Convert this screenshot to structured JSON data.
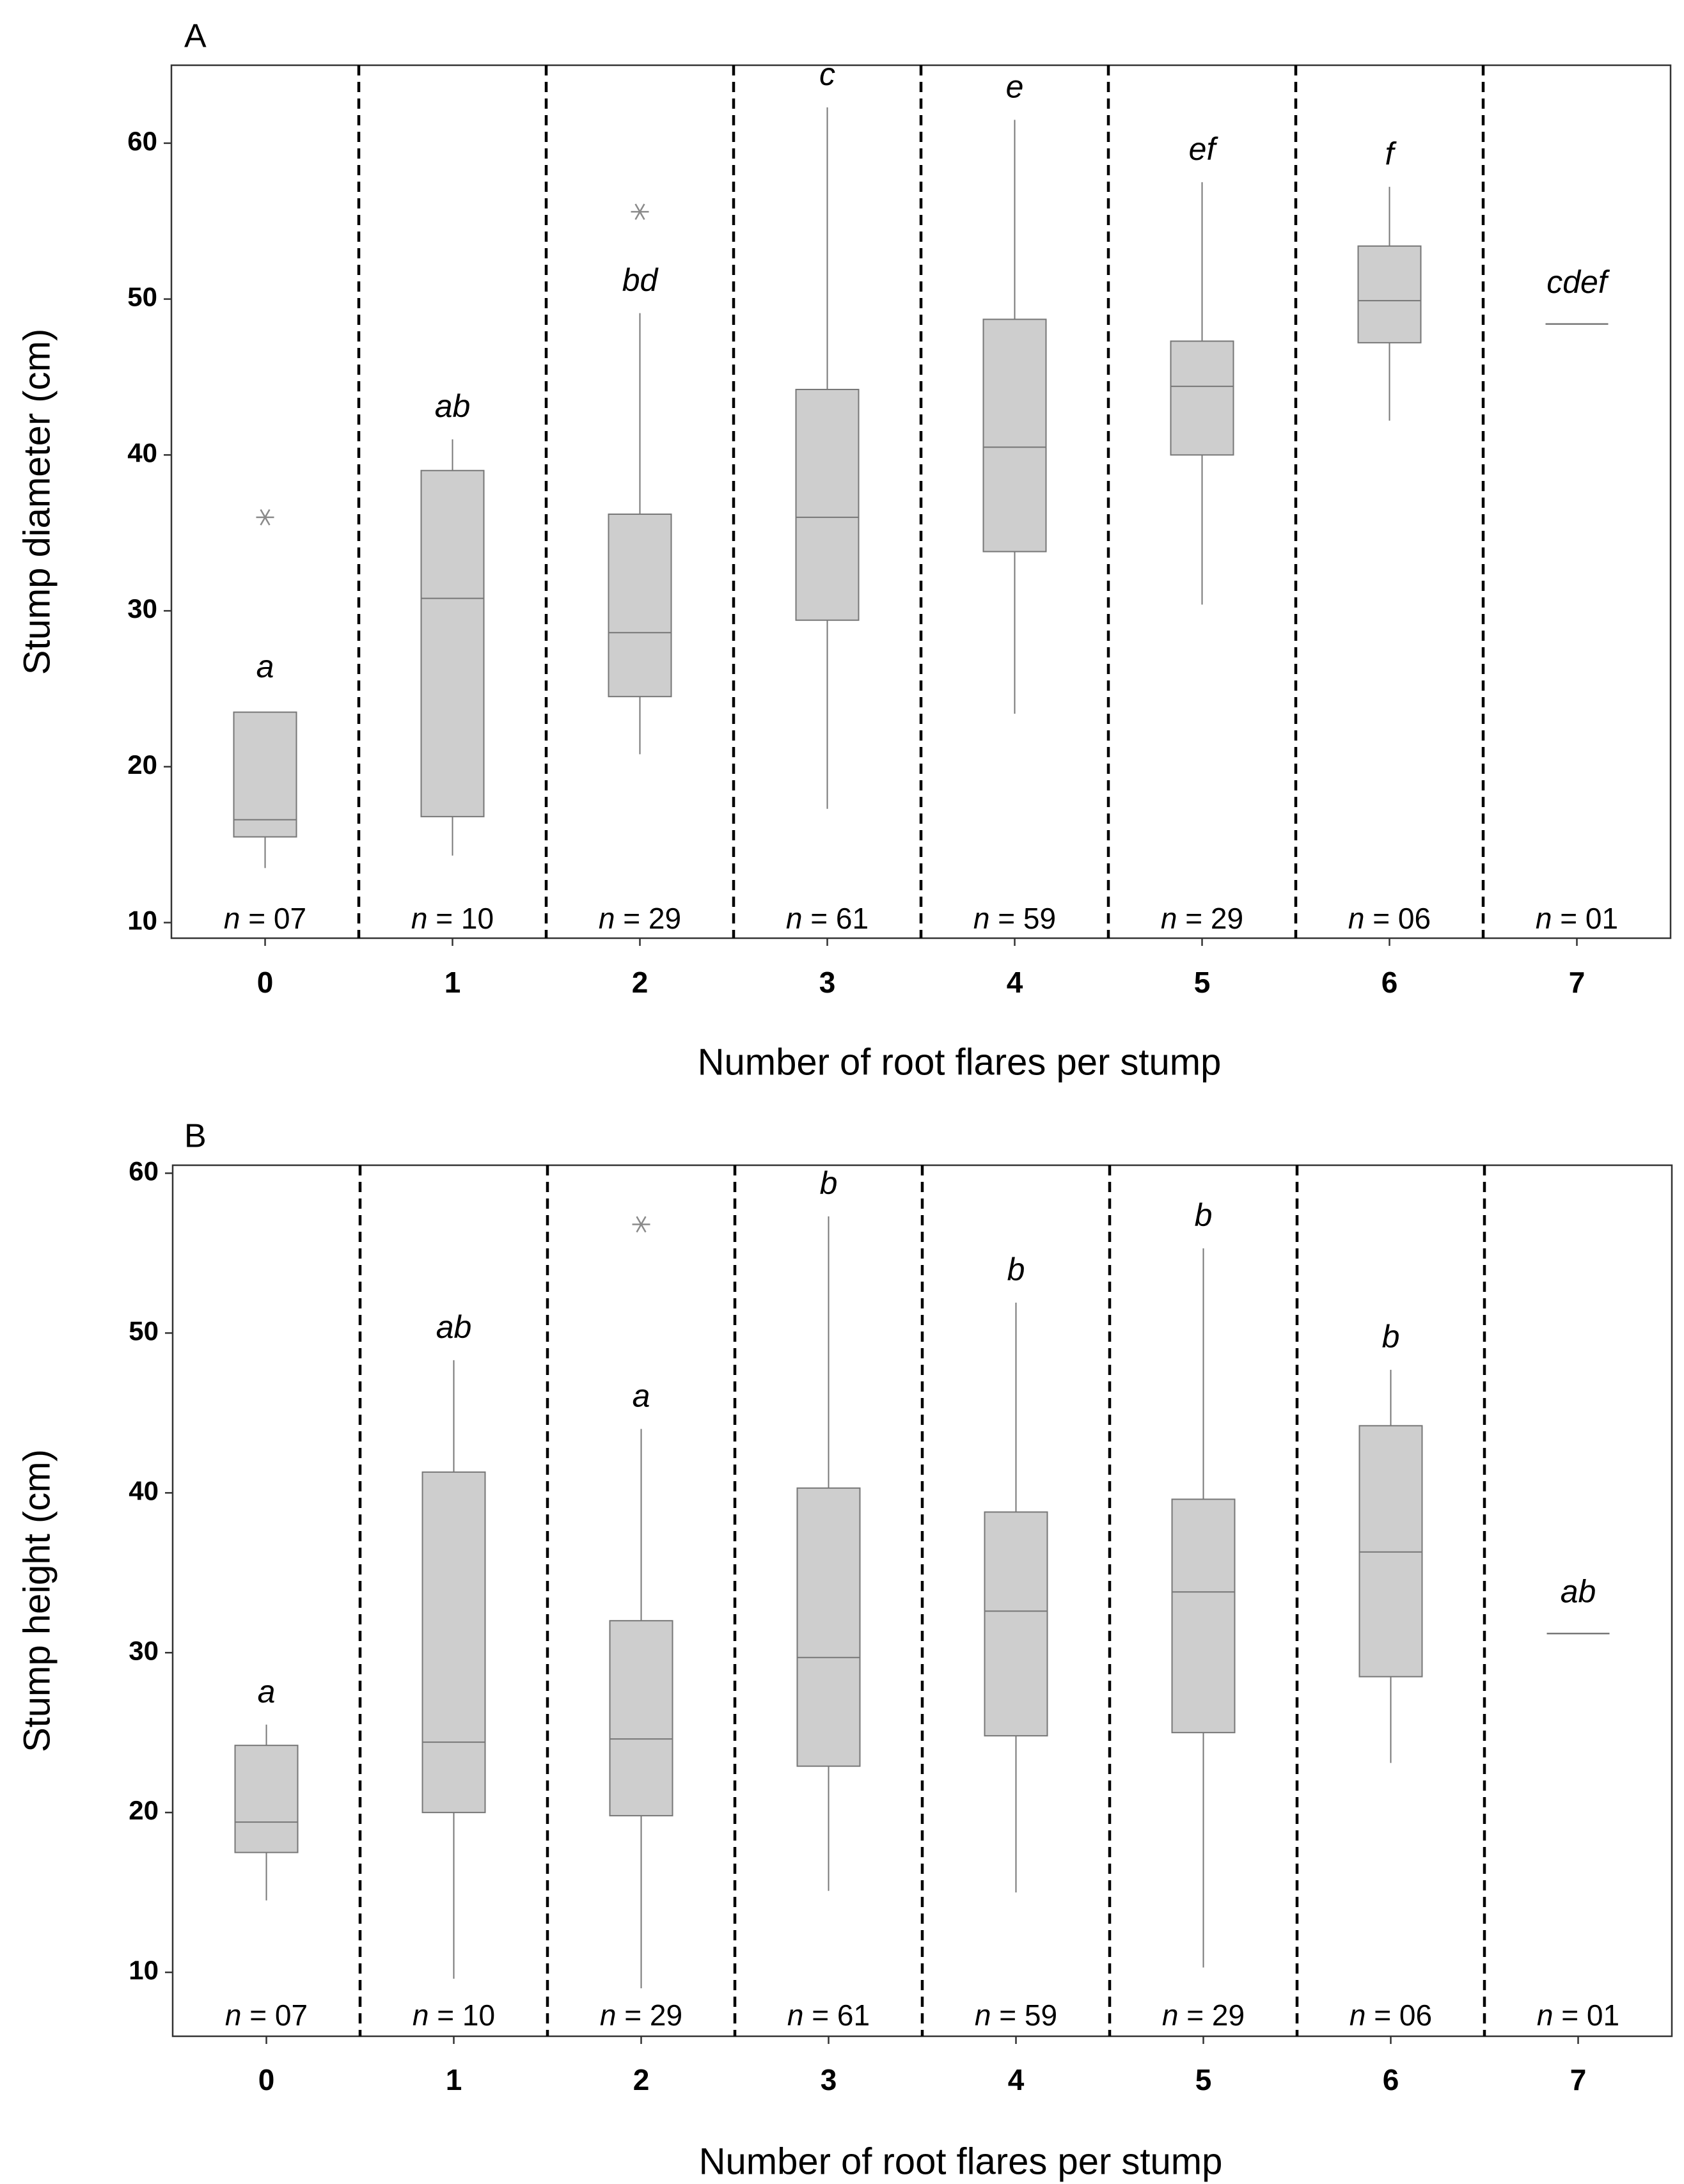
{
  "chart_data": [
    {
      "type": "box",
      "panel_label": "A",
      "xlabel": "Number of root flares per stump",
      "ylabel": "Stump diameter (cm)",
      "ylim": [
        9,
        65
      ],
      "yticks": [
        "10",
        "20",
        "30",
        "40",
        "50",
        "60"
      ],
      "categories": [
        "0",
        "1",
        "2",
        "3",
        "4",
        "5",
        "6",
        "7"
      ],
      "boxes": [
        {
          "category": "0",
          "min": 13.5,
          "q1": 15.5,
          "median": 16.6,
          "q3": 23.5,
          "max": 23.5,
          "outliers": [
            36.0
          ],
          "letter": "a",
          "n_prefix": "n",
          "n_text": " = 07"
        },
        {
          "category": "1",
          "min": 14.3,
          "q1": 16.8,
          "median": 30.8,
          "q3": 39.0,
          "max": 41.0,
          "outliers": [],
          "letter": "ab",
          "n_prefix": "n",
          "n_text": " = 10"
        },
        {
          "category": "2",
          "min": 20.8,
          "q1": 24.5,
          "median": 28.6,
          "q3": 36.2,
          "max": 49.1,
          "outliers": [
            55.6
          ],
          "letter": "bd",
          "n_prefix": "n",
          "n_text": " = 29"
        },
        {
          "category": "3",
          "min": 17.3,
          "q1": 29.4,
          "median": 36.0,
          "q3": 44.2,
          "max": 62.3,
          "outliers": [],
          "letter": "c",
          "n_prefix": "n",
          "n_text": " = 61"
        },
        {
          "category": "4",
          "min": 23.4,
          "q1": 33.8,
          "median": 40.5,
          "q3": 48.7,
          "max": 61.5,
          "outliers": [],
          "letter": "e",
          "n_prefix": "n",
          "n_text": " = 59"
        },
        {
          "category": "5",
          "min": 30.4,
          "q1": 40.0,
          "median": 44.4,
          "q3": 47.3,
          "max": 57.5,
          "outliers": [],
          "letter": "ef",
          "n_prefix": "n",
          "n_text": " = 29"
        },
        {
          "category": "6",
          "min": 42.2,
          "q1": 47.2,
          "median": 49.9,
          "q3": 53.4,
          "max": 57.2,
          "outliers": [],
          "letter": "f",
          "n_prefix": "n",
          "n_text": " = 06"
        },
        {
          "category": "7",
          "min": 48.4,
          "q1": 48.4,
          "median": 48.4,
          "q3": 48.4,
          "max": 48.4,
          "outliers": [],
          "letter": "cdef",
          "n_prefix": "n",
          "n_text": " = 01"
        }
      ]
    },
    {
      "type": "box",
      "panel_label": "B",
      "xlabel": "Number of root flares per stump",
      "ylabel": "Stump height (cm)",
      "ylim": [
        6,
        60.5
      ],
      "yticks": [
        "10",
        "20",
        "30",
        "40",
        "50",
        "60"
      ],
      "categories": [
        "0",
        "1",
        "2",
        "3",
        "4",
        "5",
        "6",
        "7"
      ],
      "boxes": [
        {
          "category": "0",
          "min": 14.5,
          "q1": 17.5,
          "median": 19.4,
          "q3": 24.2,
          "max": 25.5,
          "outliers": [],
          "letter": "a",
          "n_prefix": "n",
          "n_text": " = 07"
        },
        {
          "category": "1",
          "min": 9.6,
          "q1": 20.0,
          "median": 24.4,
          "q3": 41.3,
          "max": 48.3,
          "outliers": [],
          "letter": "ab",
          "n_prefix": "n",
          "n_text": " = 10"
        },
        {
          "category": "2",
          "min": 9.0,
          "q1": 19.8,
          "median": 24.6,
          "q3": 32.0,
          "max": 44.0,
          "outliers": [
            56.8
          ],
          "letter": "a",
          "n_prefix": "n",
          "n_text": " = 29"
        },
        {
          "category": "3",
          "min": 15.1,
          "q1": 22.9,
          "median": 29.7,
          "q3": 40.3,
          "max": 57.3,
          "outliers": [],
          "letter": "b",
          "n_prefix": "n",
          "n_text": " = 61"
        },
        {
          "category": "4",
          "min": 15.0,
          "q1": 24.8,
          "median": 32.6,
          "q3": 38.8,
          "max": 51.9,
          "outliers": [],
          "letter": "b",
          "n_prefix": "n",
          "n_text": " = 59"
        },
        {
          "category": "5",
          "min": 10.3,
          "q1": 25.0,
          "median": 33.8,
          "q3": 39.6,
          "max": 55.3,
          "outliers": [],
          "letter": "b",
          "n_prefix": "n",
          "n_text": " = 29"
        },
        {
          "category": "6",
          "min": 23.1,
          "q1": 28.5,
          "median": 36.3,
          "q3": 44.2,
          "max": 47.7,
          "outliers": [],
          "letter": "b",
          "n_prefix": "n",
          "n_text": " = 06"
        },
        {
          "category": "7",
          "min": 31.2,
          "q1": 31.2,
          "median": 31.2,
          "q3": 31.2,
          "max": 31.2,
          "outliers": [],
          "letter": "ab",
          "n_prefix": "n",
          "n_text": " = 01"
        }
      ]
    }
  ]
}
